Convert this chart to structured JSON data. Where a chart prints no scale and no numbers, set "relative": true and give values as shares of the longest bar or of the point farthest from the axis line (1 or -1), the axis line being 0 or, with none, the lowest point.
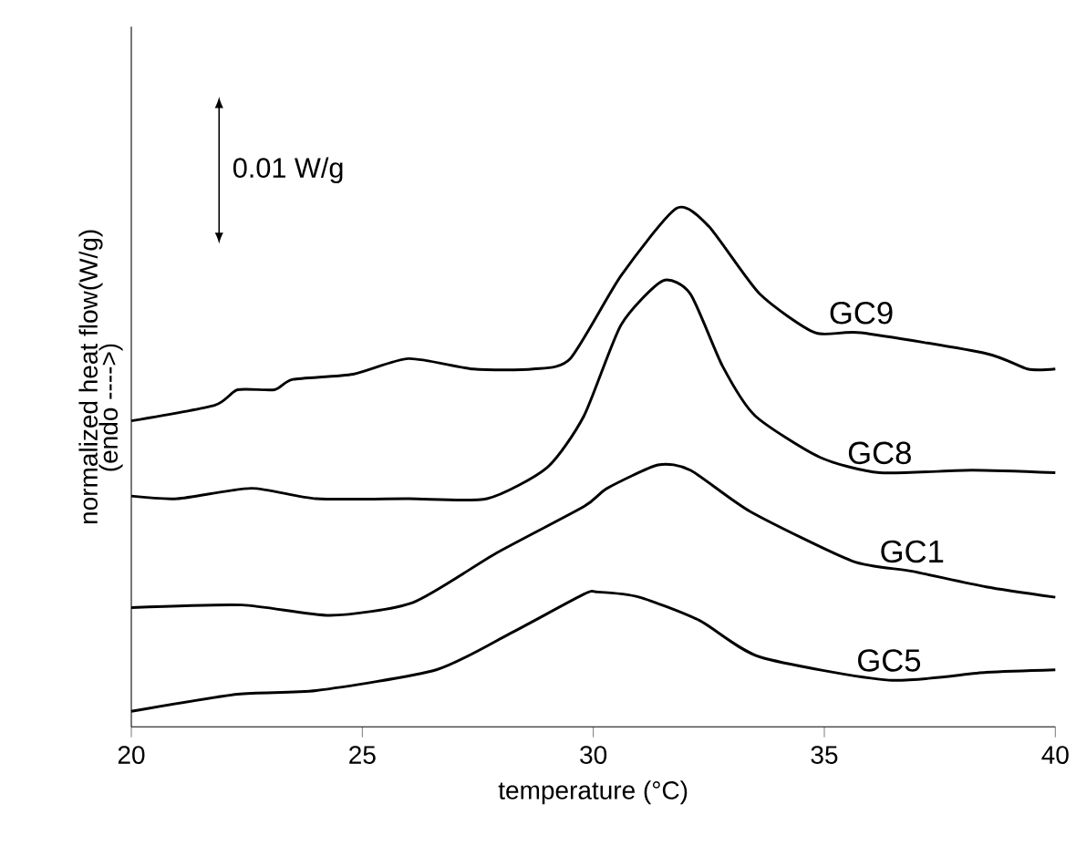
{
  "chart_data": {
    "type": "line",
    "relative": true,
    "xlabel": "temperature (°C)",
    "ylabel": "normalized heat flow(W/g)",
    "annotations": [
      "(endo ---->)",
      "0.01 W/g"
    ],
    "xlim": [
      20,
      40
    ],
    "xticks": [
      20,
      25,
      30,
      35,
      40
    ],
    "marker": "none",
    "line_style": "solid",
    "series": [
      {
        "name": "GC9",
        "color": "#000000",
        "x": [
          20.0,
          21.8,
          22.3,
          23.1,
          23.5,
          24.8,
          26.0,
          27.4,
          28.7,
          29.5,
          30.6,
          31.8,
          32.5,
          33.6,
          34.8,
          35.8,
          38.5,
          39.4,
          40.0
        ],
        "values": [
          0.59,
          0.62,
          0.65,
          0.65,
          0.67,
          0.68,
          0.71,
          0.69,
          0.69,
          0.71,
          0.87,
          1.0,
          0.965,
          0.835,
          0.76,
          0.76,
          0.72,
          0.69,
          0.69
        ]
      },
      {
        "name": "GC8",
        "color": "#000000",
        "x": [
          20.0,
          21.0,
          22.6,
          24.0,
          26.0,
          27.7,
          29.0,
          29.8,
          30.6,
          31.5,
          32.1,
          32.8,
          33.5,
          34.9,
          36.2,
          38.2,
          40.0
        ],
        "values": [
          0.445,
          0.44,
          0.46,
          0.44,
          0.44,
          0.44,
          0.5,
          0.6,
          0.775,
          0.86,
          0.835,
          0.695,
          0.6,
          0.52,
          0.49,
          0.495,
          0.49
        ]
      },
      {
        "name": "GC1",
        "color": "#000000",
        "x": [
          20.0,
          22.4,
          24.3,
          26.1,
          27.9,
          29.8,
          30.3,
          31.4,
          32.1,
          33.4,
          35.6,
          36.9,
          38.5,
          40.0
        ],
        "values": [
          0.23,
          0.235,
          0.215,
          0.24,
          0.335,
          0.425,
          0.46,
          0.505,
          0.495,
          0.415,
          0.32,
          0.3,
          0.27,
          0.25
        ]
      },
      {
        "name": "GC5",
        "color": "#000000",
        "x": [
          20.0,
          22.3,
          24.0,
          26.6,
          28.2,
          29.8,
          30.1,
          31.0,
          32.3,
          33.6,
          36.4,
          38.5,
          40.0
        ],
        "values": [
          0.03,
          0.063,
          0.07,
          0.11,
          0.18,
          0.256,
          0.26,
          0.25,
          0.205,
          0.135,
          0.09,
          0.105,
          0.11
        ]
      }
    ]
  }
}
